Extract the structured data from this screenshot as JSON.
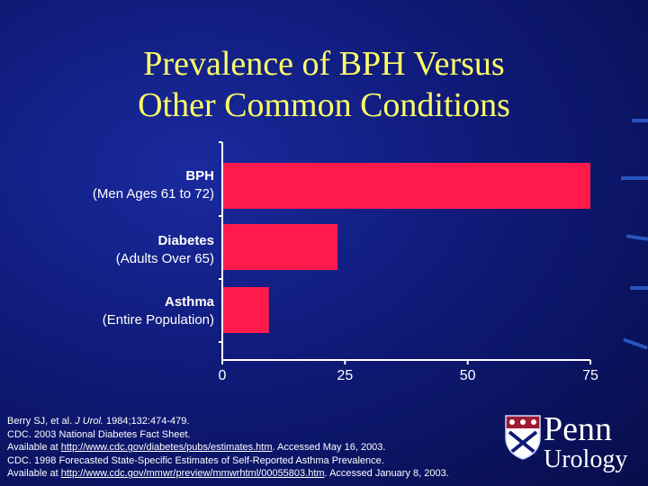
{
  "title": {
    "line1": "Prevalence of BPH Versus",
    "line2": "Other Common Conditions"
  },
  "chart_data": {
    "type": "bar",
    "orientation": "horizontal",
    "categories": [
      {
        "label": "BPH",
        "sublabel": "(Men Ages 61 to 72)"
      },
      {
        "label": "Diabetes",
        "sublabel": "(Adults Over 65)"
      },
      {
        "label": "Asthma",
        "sublabel": "(Entire Population)"
      }
    ],
    "values": [
      75,
      23.5,
      9.5
    ],
    "xlim": [
      0,
      75
    ],
    "xticks": [
      "0",
      "25",
      "50",
      "75"
    ],
    "bar_color": "#ff1a4b",
    "grid": false
  },
  "footnotes": {
    "line1_pre": "Berry SJ, et al. ",
    "line1_journal": "J Urol.",
    "line1_post": " 1984;132:474-479.",
    "line2": "CDC. 2003 National Diabetes Fact Sheet.",
    "line3_pre": "Available at ",
    "line3_link": "http://www.cdc.gov/diabetes/pubs/estimates.htm",
    "line3_post": ". Accessed May 16, 2003.",
    "line4": "CDC. 1998 Forecasted State-Specific Estimates of Self-Reported Asthma Prevalence.",
    "line5_pre": "Available at ",
    "line5_link": "http://www.cdc.gov/mmwr/preview/mmwrhtml/00055803.htm",
    "line5_post": ". Accessed January 8, 2003."
  },
  "logo": {
    "line1": "Penn",
    "line2": "Urology",
    "icon": "penn-shield-icon"
  }
}
